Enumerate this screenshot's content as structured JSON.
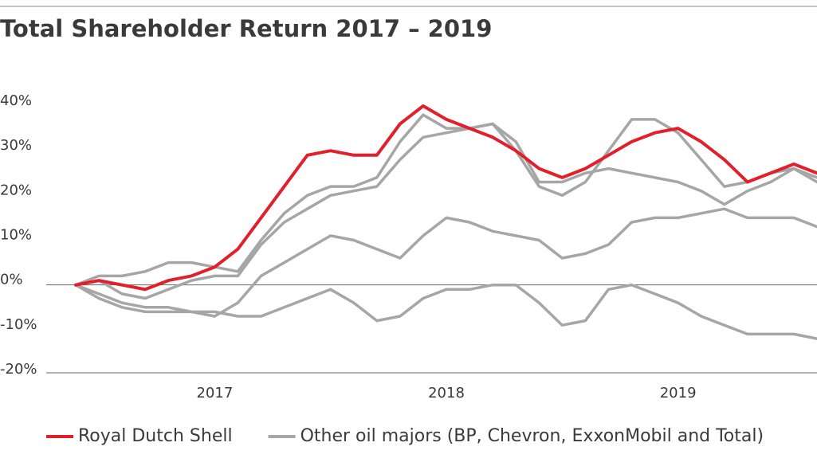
{
  "chart_data": {
    "type": "line",
    "title": "Total Shareholder Return 2017 – 2019",
    "categories": [
      null,
      null,
      null,
      null,
      null,
      null,
      "2017",
      null,
      null,
      null,
      null,
      null,
      null,
      null,
      null,
      null,
      "2018",
      null,
      null,
      null,
      null,
      null,
      null,
      null,
      null,
      null,
      "2019",
      null,
      null,
      null,
      null,
      null,
      null
    ],
    "ylim": [
      -20,
      40
    ],
    "yticks": [
      {
        "value": 40,
        "label": "40%"
      },
      {
        "value": 30,
        "label": "30%"
      },
      {
        "value": 20,
        "label": "20%"
      },
      {
        "value": 10,
        "label": "10%"
      },
      {
        "value": 0,
        "label": "0%"
      },
      {
        "value": -10,
        "label": "-10%"
      },
      {
        "value": -20,
        "label": "-20%"
      }
    ],
    "series": [
      {
        "name": "Other oil majors (BP, Chevron, ExxonMobil and Total)",
        "color": "#a6a6a6",
        "values": [
          0,
          2,
          2,
          3,
          5,
          5,
          4,
          3,
          10,
          16,
          20,
          22,
          22,
          24,
          32,
          38,
          35,
          35,
          36,
          30,
          22,
          20,
          23,
          30,
          37,
          37,
          34,
          28,
          22,
          23,
          25,
          26,
          24
        ]
      },
      {
        "color": "#a6a6a6",
        "values": [
          0,
          1,
          -2,
          -3,
          -1,
          1,
          2,
          2,
          9,
          14,
          17,
          20,
          21,
          22,
          28,
          33,
          34,
          35,
          36,
          32,
          23,
          23,
          25,
          26,
          25,
          24,
          23,
          21,
          18,
          21,
          23,
          26,
          23
        ]
      },
      {
        "color": "#a6a6a6",
        "values": [
          0,
          -2,
          -4,
          -5,
          -5,
          -6,
          -7,
          -4,
          2,
          5,
          8,
          11,
          10,
          8,
          6,
          11,
          15,
          14,
          12,
          11,
          10,
          6,
          7,
          9,
          14,
          15,
          15,
          16,
          17,
          15,
          15,
          15,
          13
        ]
      },
      {
        "color": "#a6a6a6",
        "values": [
          0,
          -3,
          -5,
          -6,
          -6,
          -6,
          -6,
          -7,
          -7,
          -5,
          -3,
          -1,
          -4,
          -8,
          -7,
          -3,
          -1,
          -1,
          0,
          0,
          -4,
          -9,
          -8,
          -1,
          0,
          -2,
          -4,
          -7,
          -9,
          -11,
          -11,
          -11,
          -12
        ]
      },
      {
        "name": "Royal Dutch Shell",
        "color": "#e2202b",
        "values": [
          0,
          1,
          0,
          -1,
          1,
          2,
          4,
          8,
          15,
          22,
          29,
          30,
          29,
          29,
          36,
          40,
          37,
          35,
          33,
          30,
          26,
          24,
          26,
          29,
          32,
          34,
          35,
          32,
          28,
          23,
          25,
          27,
          25
        ]
      }
    ]
  }
}
